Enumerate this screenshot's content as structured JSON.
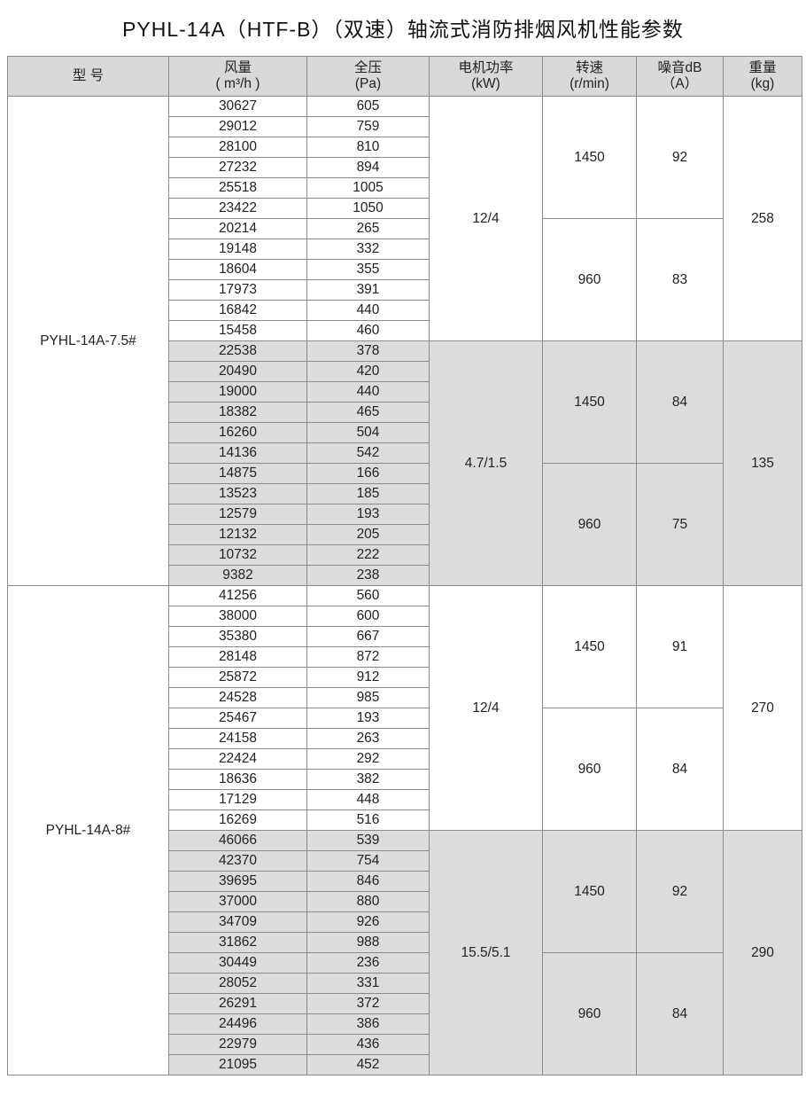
{
  "title": "PYHL-14A（HTF-B）（双速）轴流式消防排烟风机性能参数",
  "headers": [
    {
      "l1": "型 号",
      "l2": ""
    },
    {
      "l1": "风量",
      "l2": "( m³/h )"
    },
    {
      "l1": "全压",
      "l2": "(Pa)"
    },
    {
      "l1": "电机功率",
      "l2": "(kW)"
    },
    {
      "l1": "转速",
      "l2": "(r/min)"
    },
    {
      "l1": "噪音dB",
      "l2": "（A）"
    },
    {
      "l1": "重量",
      "l2": "(kg)"
    }
  ],
  "colors": {
    "header_bg": "#d9d9d9",
    "shaded_bg": "#dcdcdc",
    "border": "#8a8a8a"
  },
  "models": [
    {
      "name": "PYHL-14A-7.5#",
      "groups": [
        {
          "power": "12/4",
          "weight": "258",
          "shaded": false,
          "speeds": [
            {
              "rpm": "1450",
              "noise": "92",
              "rows": [
                [
                  "30627",
                  "605"
                ],
                [
                  "29012",
                  "759"
                ],
                [
                  "28100",
                  "810"
                ],
                [
                  "27232",
                  "894"
                ],
                [
                  "25518",
                  "1005"
                ],
                [
                  "23422",
                  "1050"
                ]
              ]
            },
            {
              "rpm": "960",
              "noise": "83",
              "rows": [
                [
                  "20214",
                  "265"
                ],
                [
                  "19148",
                  "332"
                ],
                [
                  "18604",
                  "355"
                ],
                [
                  "17973",
                  "391"
                ],
                [
                  "16842",
                  "440"
                ],
                [
                  "15458",
                  "460"
                ]
              ]
            }
          ]
        },
        {
          "power": "4.7/1.5",
          "weight": "135",
          "shaded": true,
          "speeds": [
            {
              "rpm": "1450",
              "noise": "84",
              "rows": [
                [
                  "22538",
                  "378"
                ],
                [
                  "20490",
                  "420"
                ],
                [
                  "19000",
                  "440"
                ],
                [
                  "18382",
                  "465"
                ],
                [
                  "16260",
                  "504"
                ],
                [
                  "14136",
                  "542"
                ]
              ]
            },
            {
              "rpm": "960",
              "noise": "75",
              "rows": [
                [
                  "14875",
                  "166"
                ],
                [
                  "13523",
                  "185"
                ],
                [
                  "12579",
                  "193"
                ],
                [
                  "12132",
                  "205"
                ],
                [
                  "10732",
                  "222"
                ],
                [
                  "9382",
                  "238"
                ]
              ]
            }
          ]
        }
      ]
    },
    {
      "name": "PYHL-14A-8#",
      "groups": [
        {
          "power": "12/4",
          "weight": "270",
          "shaded": false,
          "speeds": [
            {
              "rpm": "1450",
              "noise": "91",
              "rows": [
                [
                  "41256",
                  "560"
                ],
                [
                  "38000",
                  "600"
                ],
                [
                  "35380",
                  "667"
                ],
                [
                  "28148",
                  "872"
                ],
                [
                  "25872",
                  "912"
                ],
                [
                  "24528",
                  "985"
                ]
              ]
            },
            {
              "rpm": "960",
              "noise": "84",
              "rows": [
                [
                  "25467",
                  "193"
                ],
                [
                  "24158",
                  "263"
                ],
                [
                  "22424",
                  "292"
                ],
                [
                  "18636",
                  "382"
                ],
                [
                  "17129",
                  "448"
                ],
                [
                  "16269",
                  "516"
                ]
              ]
            }
          ]
        },
        {
          "power": "15.5/5.1",
          "weight": "290",
          "shaded": true,
          "speeds": [
            {
              "rpm": "1450",
              "noise": "92",
              "rows": [
                [
                  "46066",
                  "539"
                ],
                [
                  "42370",
                  "754"
                ],
                [
                  "39695",
                  "846"
                ],
                [
                  "37000",
                  "880"
                ],
                [
                  "34709",
                  "926"
                ],
                [
                  "31862",
                  "988"
                ]
              ]
            },
            {
              "rpm": "960",
              "noise": "84",
              "rows": [
                [
                  "30449",
                  "236"
                ],
                [
                  "28052",
                  "331"
                ],
                [
                  "26291",
                  "372"
                ],
                [
                  "24496",
                  "386"
                ],
                [
                  "22979",
                  "436"
                ],
                [
                  "21095",
                  "452"
                ]
              ]
            }
          ]
        }
      ]
    }
  ]
}
